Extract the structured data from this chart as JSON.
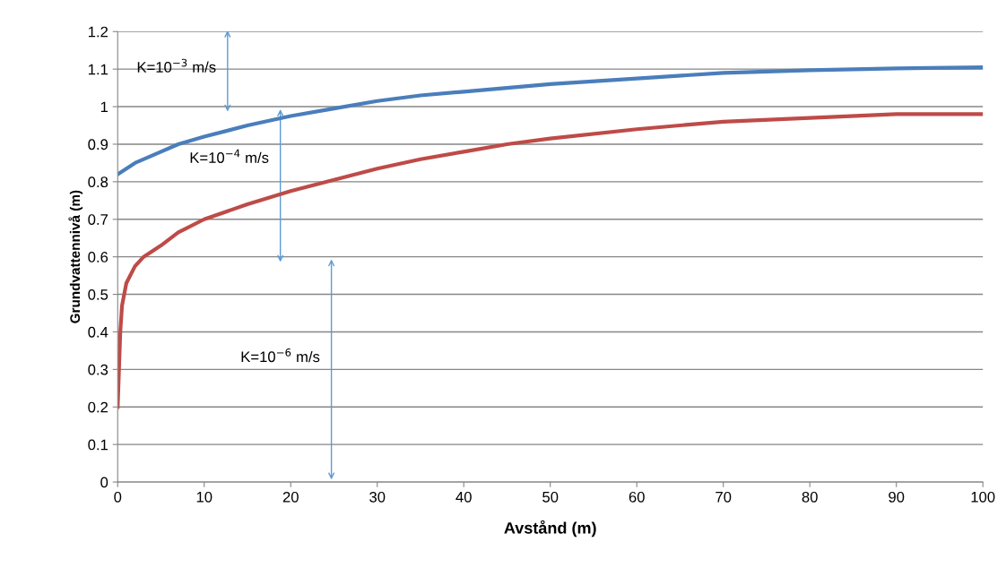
{
  "chart_data": {
    "type": "line",
    "xlabel": "Avstånd (m)",
    "ylabel": "Grundvattennivå (m)",
    "xlim": [
      0,
      100
    ],
    "xticks": [
      0,
      10,
      20,
      30,
      40,
      50,
      60,
      70,
      80,
      90,
      100
    ],
    "ylim": [
      0,
      1.2
    ],
    "yticks": [
      0,
      0.1,
      0.2,
      0.3,
      0.4,
      0.5,
      0.6,
      0.7,
      0.8,
      0.9,
      1,
      1.1,
      1.2
    ],
    "grid": "y",
    "legend": false,
    "marker": "none",
    "line_style": "solid",
    "series": [
      {
        "color": "#4a7ebb",
        "x": [
          0,
          2,
          5,
          7,
          10,
          15,
          20,
          25,
          30,
          35,
          40,
          50,
          60,
          70,
          80,
          90,
          100
        ],
        "values": [
          0.82,
          0.85,
          0.88,
          0.9,
          0.92,
          0.95,
          0.975,
          0.995,
          1.015,
          1.03,
          1.04,
          1.06,
          1.075,
          1.09,
          1.097,
          1.102,
          1.105
        ]
      },
      {
        "color": "#be4b48",
        "x": [
          0,
          0.3,
          0.5,
          1,
          2,
          3,
          5,
          7,
          10,
          15,
          20,
          25,
          30,
          35,
          40,
          45,
          50,
          60,
          70,
          80,
          90,
          100
        ],
        "values": [
          0.2,
          0.4,
          0.47,
          0.53,
          0.575,
          0.6,
          0.63,
          0.665,
          0.7,
          0.74,
          0.775,
          0.805,
          0.835,
          0.86,
          0.88,
          0.9,
          0.915,
          0.94,
          0.96,
          0.97,
          0.98,
          0.98
        ]
      }
    ],
    "annotations": [
      "K=10$^{−3}$ m/s",
      "K=10$^{−4}$ m/s",
      "K=10$^{−6}$ m/s"
    ]
  }
}
